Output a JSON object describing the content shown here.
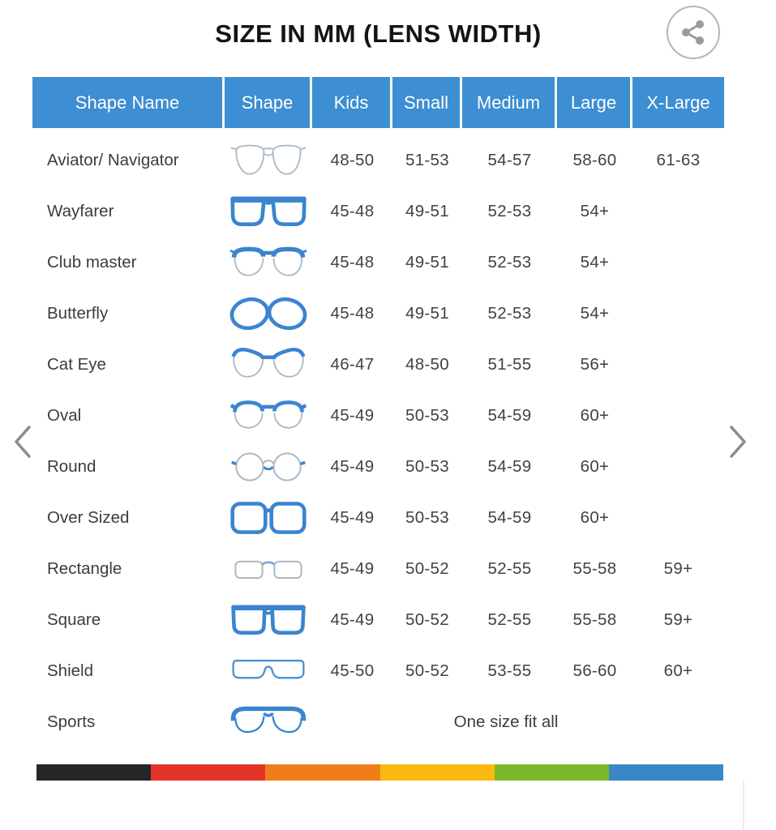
{
  "title": "SIZE IN MM (LENS WIDTH)",
  "share_button": {
    "icon": "share-icon"
  },
  "carousel": {
    "prev_icon": "chevron-left-icon",
    "next_icon": "chevron-right-icon"
  },
  "table": {
    "columns": [
      "Shape Name",
      "Shape",
      "Kids",
      "Small",
      "Medium",
      "Large",
      "X-Large"
    ],
    "rows": [
      {
        "name": "Aviator/ Navigator",
        "icon": "aviator-glasses-icon",
        "sizes": {
          "kids": "48-50",
          "small": "51-53",
          "medium": "54-57",
          "large": "58-60",
          "xlarge": "61-63"
        }
      },
      {
        "name": "Wayfarer",
        "icon": "wayfarer-glasses-icon",
        "sizes": {
          "kids": "45-48",
          "small": "49-51",
          "medium": "52-53",
          "large": "54+",
          "xlarge": ""
        }
      },
      {
        "name": "Club master",
        "icon": "clubmaster-glasses-icon",
        "sizes": {
          "kids": "45-48",
          "small": "49-51",
          "medium": "52-53",
          "large": "54+",
          "xlarge": ""
        }
      },
      {
        "name": "Butterfly",
        "icon": "butterfly-glasses-icon",
        "sizes": {
          "kids": "45-48",
          "small": "49-51",
          "medium": "52-53",
          "large": "54+",
          "xlarge": ""
        }
      },
      {
        "name": "Cat Eye",
        "icon": "cateye-glasses-icon",
        "sizes": {
          "kids": "46-47",
          "small": "48-50",
          "medium": "51-55",
          "large": "56+",
          "xlarge": ""
        }
      },
      {
        "name": "Oval",
        "icon": "oval-glasses-icon",
        "sizes": {
          "kids": "45-49",
          "small": "50-53",
          "medium": "54-59",
          "large": "60+",
          "xlarge": ""
        }
      },
      {
        "name": "Round",
        "icon": "round-glasses-icon",
        "sizes": {
          "kids": "45-49",
          "small": "50-53",
          "medium": "54-59",
          "large": "60+",
          "xlarge": ""
        }
      },
      {
        "name": "Over Sized",
        "icon": "oversized-glasses-icon",
        "sizes": {
          "kids": "45-49",
          "small": "50-53",
          "medium": "54-59",
          "large": "60+",
          "xlarge": ""
        }
      },
      {
        "name": "Rectangle",
        "icon": "rectangle-glasses-icon",
        "sizes": {
          "kids": "45-49",
          "small": "50-52",
          "medium": "52-55",
          "large": "55-58",
          "xlarge": "59+"
        }
      },
      {
        "name": "Square",
        "icon": "square-glasses-icon",
        "sizes": {
          "kids": "45-49",
          "small": "50-52",
          "medium": "52-55",
          "large": "55-58",
          "xlarge": "59+"
        }
      },
      {
        "name": "Shield",
        "icon": "shield-glasses-icon",
        "sizes": {
          "kids": "45-50",
          "small": "50-52",
          "medium": "53-55",
          "large": "56-60",
          "xlarge": "60+"
        }
      },
      {
        "name": "Sports",
        "icon": "sports-glasses-icon",
        "one_size": "One size fit all"
      }
    ]
  },
  "footer_stripe_colors": [
    "#262626",
    "#e6332a",
    "#ef7d1a",
    "#fbba12",
    "#7ab829",
    "#3a87c8"
  ],
  "colors": {
    "header_bg": "#3d8ed2",
    "header_text": "#ffffff",
    "body_text": "#424242",
    "title_text": "#141414",
    "icon_blue": "#3b84d0",
    "chevron_gray": "#8b8b8b",
    "share_gray": "#9b9b9b"
  }
}
